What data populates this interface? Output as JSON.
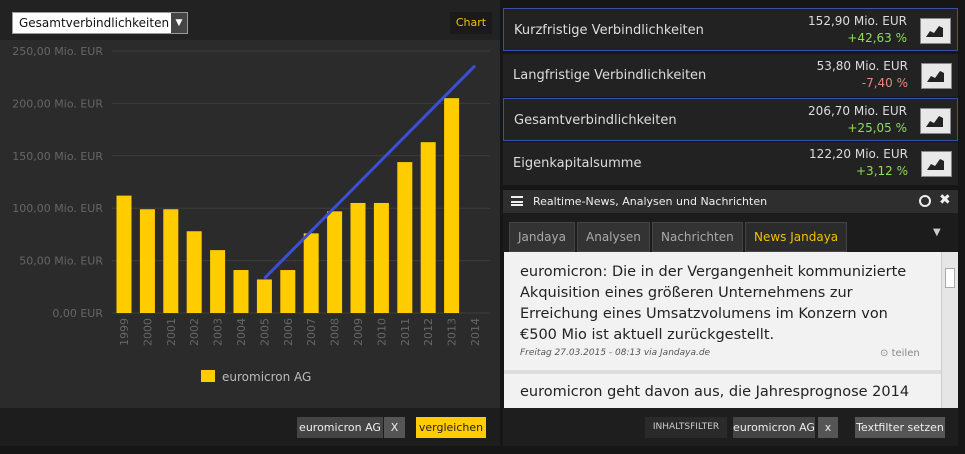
{
  "left_panel": {
    "dropdown": "Gesamtverbindlichkeiten",
    "chart_button": "Chart",
    "compare_chip": "euromicron AG",
    "compare_remove": "X",
    "compare_button": "vergleichen"
  },
  "chart_data": {
    "type": "bar",
    "categories": [
      "1999",
      "2000",
      "2001",
      "2002",
      "2003",
      "2004",
      "2005",
      "2006",
      "2007",
      "2008",
      "2009",
      "2010",
      "2011",
      "2012",
      "2013",
      "2014"
    ],
    "series": [
      {
        "name": "euromicron AG",
        "color": "#ffcc00",
        "values": [
          112,
          99,
          99,
          78,
          60,
          41,
          32,
          41,
          76,
          97,
          105,
          105,
          144,
          163,
          205,
          null
        ]
      }
    ],
    "trend": {
      "categories": [
        "2005",
        "2014"
      ],
      "values": [
        33,
        236
      ],
      "color": "#3b4fd6"
    },
    "ylim": [
      0,
      250
    ],
    "yticks": [
      {
        "value": 0,
        "label": "0,00 EUR"
      },
      {
        "value": 50,
        "label": "50,00 Mio. EUR"
      },
      {
        "value": 100,
        "label": "100,00 Mio. EUR"
      },
      {
        "value": 150,
        "label": "150,00 Mio. EUR"
      },
      {
        "value": 200,
        "label": "200,00 Mio. EUR"
      },
      {
        "value": 250,
        "label": "250,00 Mio. EUR"
      }
    ],
    "grid": true
  },
  "metrics": [
    {
      "name": "Kurzfristige Verbindlichkeiten",
      "value": "152,90 Mio. EUR",
      "change": "+42,63 %",
      "highlighted": true
    },
    {
      "name": "Langfristige Verbindlichkeiten",
      "value": "53,80 Mio. EUR",
      "change": "-7,40 %",
      "highlighted": false
    },
    {
      "name": "Gesamtverbindlichkeiten",
      "value": "206,70 Mio. EUR",
      "change": "+25,05 %",
      "highlighted": true
    },
    {
      "name": "Eigenkapitalsumme",
      "value": "122,20 Mio. EUR",
      "change": "+3,12 %",
      "highlighted": false
    }
  ],
  "news": {
    "title": "Realtime-News, Analysen und Nachrichten",
    "tabs": [
      "Jandaya",
      "Analysen",
      "Nachrichten",
      "News Jandaya"
    ],
    "active_tab": 3,
    "articles": [
      {
        "text": "euromicron: Die in der Vergangenheit kommunizierte Akquisition eines größeren Unternehmens zur Erreichung eines Umsatzvolumens im Konzern von €500 Mio ist aktuell zurückgestellt.",
        "meta": "Freitag 27.03.2015 - 08:13 via Jandaya.de",
        "share": "teilen"
      },
      {
        "text": "euromicron geht davon aus, die Jahresprognose 2014"
      }
    ],
    "filter_label": "INHALTSFILTER",
    "filter_chip": "euromicron AG",
    "filter_remove": "x",
    "filter_button": "Textfilter setzen"
  }
}
